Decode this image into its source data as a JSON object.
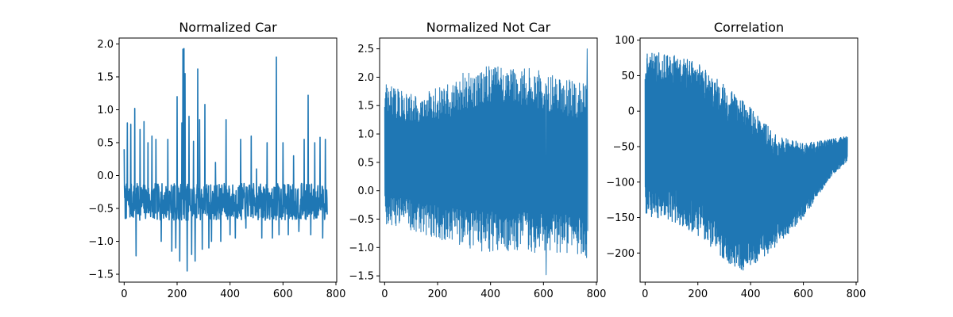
{
  "style": {
    "line_color": "#1f77b4"
  },
  "chart_data": [
    {
      "type": "line",
      "title": "Normalized Car",
      "xlabel": "",
      "ylabel": "",
      "xlim": [
        -19,
        803
      ],
      "ylim": [
        -1.62,
        2.09
      ],
      "xticks": [
        0,
        200,
        400,
        600,
        800
      ],
      "yticks": [
        -1.5,
        -1.0,
        -0.5,
        0.0,
        0.5,
        1.0,
        1.5,
        2.0
      ],
      "ytick_labels": [
        "−1.5",
        "−1.0",
        "−0.5",
        "0.0",
        "0.5",
        "1.0",
        "1.5",
        "2.0"
      ],
      "n_points": 768,
      "baseline": -0.4,
      "noise_amplitude": 0.28,
      "spikes": [
        [
          12,
          0.8
        ],
        [
          25,
          0.78
        ],
        [
          40,
          1.02
        ],
        [
          45,
          -1.22
        ],
        [
          60,
          0.7
        ],
        [
          75,
          0.82
        ],
        [
          90,
          0.5
        ],
        [
          105,
          0.6
        ],
        [
          120,
          0.55
        ],
        [
          140,
          -1.0
        ],
        [
          165,
          0.55
        ],
        [
          180,
          -1.15
        ],
        [
          195,
          -1.1
        ],
        [
          200,
          1.2
        ],
        [
          210,
          -1.3
        ],
        [
          218,
          0.8
        ],
        [
          222,
          1.92
        ],
        [
          226,
          1.93
        ],
        [
          230,
          1.55
        ],
        [
          238,
          -1.45
        ],
        [
          245,
          0.9
        ],
        [
          255,
          -1.2
        ],
        [
          262,
          0.52
        ],
        [
          268,
          -1.3
        ],
        [
          278,
          1.62
        ],
        [
          285,
          0.85
        ],
        [
          295,
          -1.12
        ],
        [
          305,
          1.08
        ],
        [
          320,
          -1.1
        ],
        [
          330,
          -1.0
        ],
        [
          345,
          0.2
        ],
        [
          365,
          -1.0
        ],
        [
          385,
          0.85
        ],
        [
          400,
          -0.9
        ],
        [
          420,
          -0.95
        ],
        [
          440,
          0.55
        ],
        [
          460,
          -0.8
        ],
        [
          480,
          0.6
        ],
        [
          500,
          0.1
        ],
        [
          520,
          -0.95
        ],
        [
          540,
          0.5
        ],
        [
          560,
          -0.95
        ],
        [
          575,
          1.8
        ],
        [
          585,
          -0.9
        ],
        [
          600,
          0.5
        ],
        [
          620,
          -0.9
        ],
        [
          640,
          0.3
        ],
        [
          660,
          -0.85
        ],
        [
          680,
          0.55
        ],
        [
          695,
          1.22
        ],
        [
          705,
          -0.9
        ],
        [
          720,
          0.5
        ],
        [
          740,
          0.58
        ],
        [
          750,
          -0.95
        ],
        [
          760,
          0.55
        ]
      ]
    },
    {
      "type": "line",
      "title": "Normalized Not Car",
      "xlabel": "",
      "ylabel": "",
      "xlim": [
        -19,
        803
      ],
      "ylim": [
        -1.61,
        2.69
      ],
      "xticks": [
        0,
        200,
        400,
        600,
        800
      ],
      "yticks": [
        -1.5,
        -1.0,
        -0.5,
        0.0,
        0.5,
        1.0,
        1.5,
        2.0,
        2.5
      ],
      "ytick_labels": [
        "−1.5",
        "−1.0",
        "−0.5",
        "0.0",
        "0.5",
        "1.0",
        "1.5",
        "2.0",
        "2.5"
      ],
      "n_points": 768,
      "upper_envelope": [
        [
          0,
          1.9
        ],
        [
          100,
          1.7
        ],
        [
          150,
          1.75
        ],
        [
          250,
          1.9
        ],
        [
          300,
          2.1
        ],
        [
          400,
          2.2
        ],
        [
          500,
          2.2
        ],
        [
          600,
          2.1
        ],
        [
          700,
          2.0
        ],
        [
          767,
          1.9
        ]
      ],
      "lower_envelope": [
        [
          0,
          -0.6
        ],
        [
          100,
          -0.7
        ],
        [
          200,
          -0.85
        ],
        [
          300,
          -1.0
        ],
        [
          400,
          -1.1
        ],
        [
          500,
          -1.1
        ],
        [
          600,
          -1.1
        ],
        [
          700,
          -1.1
        ],
        [
          767,
          -1.2
        ]
      ],
      "peak_max": [
        765,
        2.5
      ],
      "peak_min": [
        610,
        -1.48
      ]
    },
    {
      "type": "line",
      "title": "Correlation",
      "xlabel": "",
      "ylabel": "",
      "xlim": [
        -38,
        1612
      ],
      "ylim": [
        -241,
        103
      ],
      "xticks": [
        0,
        200,
        400,
        600,
        800
      ],
      "yticks": [
        -200,
        -150,
        -100,
        -50,
        0,
        50,
        100
      ],
      "ytick_labels": [
        "−200",
        "−150",
        "−100",
        "−50",
        "0",
        "50",
        "100"
      ],
      "n_points": 1535,
      "upper_envelope": [
        [
          0,
          85
        ],
        [
          100,
          80
        ],
        [
          200,
          68
        ],
        [
          300,
          40
        ],
        [
          400,
          5
        ],
        [
          500,
          -35
        ],
        [
          600,
          -45
        ],
        [
          700,
          -40
        ],
        [
          767,
          -35
        ]
      ],
      "lower_envelope": [
        [
          0,
          -150
        ],
        [
          100,
          -155
        ],
        [
          200,
          -175
        ],
        [
          300,
          -210
        ],
        [
          380,
          -228
        ],
        [
          450,
          -205
        ],
        [
          500,
          -190
        ],
        [
          600,
          -150
        ],
        [
          700,
          -95
        ],
        [
          767,
          -70
        ]
      ]
    }
  ]
}
